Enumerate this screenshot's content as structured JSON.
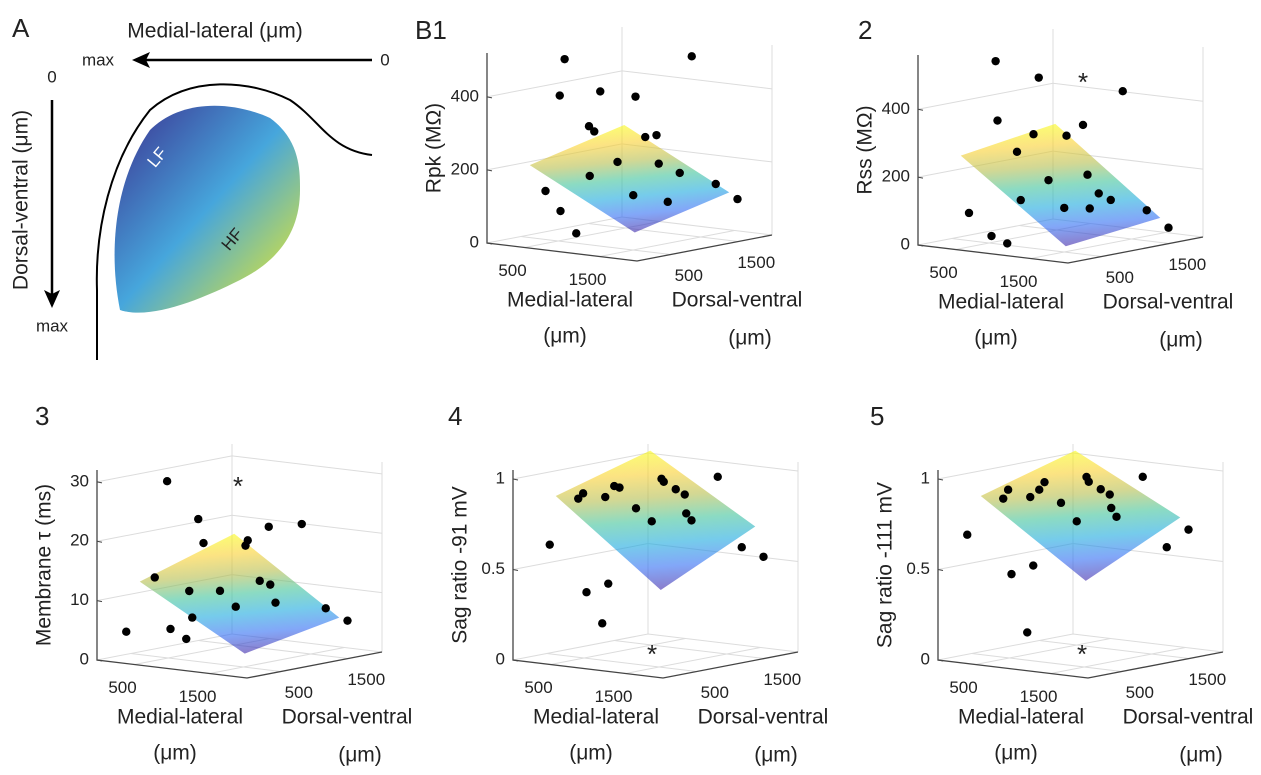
{
  "diagram": {
    "label": "A",
    "ml_axis": "Medial-lateral (μm)",
    "ml_max": "max",
    "ml_zero": "0",
    "dv_axis": "Dorsal-ventral (μm)",
    "dv_zero": "0",
    "dv_max": "max",
    "low": "LF",
    "high": "HF"
  },
  "chart_data": [
    {
      "type": "scatter3d",
      "title": "B1",
      "zlabel": "Rpk (MΩ)",
      "xlabel": [
        "Medial-lateral",
        "(μm)"
      ],
      "ylabel": [
        "Dorsal-ventral",
        "(μm)"
      ],
      "xlim": [
        0,
        2000
      ],
      "ylim": [
        0,
        2000
      ],
      "zlim": [
        0,
        520
      ],
      "xticks": [
        500,
        1500
      ],
      "yticks": [
        500,
        1500
      ],
      "zticks": [
        0,
        200,
        400
      ],
      "grid": true,
      "surface": {
        "x": [
          300,
          1700
        ],
        "y": [
          300,
          1700
        ],
        "z": [
          210,
          60,
          120,
          270
        ]
      },
      "series": [
        {
          "color": "#000000",
          "x": [
            600,
            700,
            900,
            800,
            1000,
            1100,
            700,
            1200,
            1300,
            1500,
            900,
            1000,
            1400,
            1600,
            1700,
            1200,
            800,
            1100,
            1900,
            1300
          ],
          "y": [
            200,
            300,
            150,
            700,
            400,
            300,
            900,
            600,
            900,
            500,
            1200,
            1400,
            1300,
            900,
            1500,
            1700,
            200,
            100,
            1600,
            1100
          ],
          "values": [
            150,
            410,
            520,
            300,
            330,
            200,
            400,
            230,
            290,
            150,
            380,
            270,
            180,
            120,
            150,
            480,
            100,
            50,
            110,
            210
          ]
        }
      ]
    },
    {
      "type": "scatter3d",
      "title": "2",
      "zlabel": "Rss (MΩ)",
      "xlabel": [
        "Medial-lateral",
        "(μm)"
      ],
      "ylabel": [
        "Dorsal-ventral",
        "(μm)"
      ],
      "xlim": [
        0,
        2000
      ],
      "ylim": [
        0,
        2000
      ],
      "zlim": [
        0,
        560
      ],
      "xticks": [
        500,
        1500
      ],
      "yticks": [
        500,
        1500
      ],
      "zticks": [
        0,
        200,
        400
      ],
      "grid": true,
      "annotation": "*",
      "surface": {
        "x": [
          300,
          1700
        ],
        "y": [
          300,
          1700
        ],
        "z": [
          260,
          30,
          60,
          300
        ]
      },
      "series": [
        {
          "color": "#000000",
          "x": [
            500,
            700,
            900,
            1000,
            1100,
            800,
            1200,
            1300,
            1500,
            900,
            1000,
            1400,
            1600,
            1700,
            1200,
            800,
            1100,
            1900,
            1300,
            600
          ],
          "y": [
            200,
            400,
            150,
            600,
            300,
            900,
            600,
            1000,
            500,
            1200,
            1400,
            1300,
            900,
            1500,
            1700,
            200,
            100,
            1600,
            1100,
            800
          ],
          "values": [
            100,
            370,
            560,
            330,
            150,
            480,
            200,
            350,
            130,
            300,
            180,
            120,
            160,
            90,
            420,
            40,
            30,
            40,
            100,
            260
          ]
        }
      ]
    },
    {
      "type": "scatter3d",
      "title": "3",
      "zlabel": "Membrane τ (ms)",
      "xlabel": [
        "Medial-lateral",
        "(μm)"
      ],
      "ylabel": [
        "Dorsal-ventral",
        "(μm)"
      ],
      "xlim": [
        0,
        2000
      ],
      "ylim": [
        0,
        2000
      ],
      "zlim": [
        0,
        32
      ],
      "xticks": [
        500,
        1500
      ],
      "yticks": [
        500,
        1500
      ],
      "zticks": [
        0,
        10,
        20,
        30
      ],
      "grid": true,
      "annotation": "*",
      "surface": {
        "x": [
          300,
          1700
        ],
        "y": [
          300,
          1700
        ],
        "z": [
          13,
          3,
          6,
          18
        ]
      },
      "series": [
        {
          "color": "#000000",
          "x": [
            300,
            500,
            800,
            900,
            1000,
            700,
            1100,
            1200,
            1400,
            900,
            1000,
            1300,
            1500,
            1700,
            1200,
            800,
            1100,
            1900,
            1300,
            600
          ],
          "y": [
            100,
            300,
            150,
            500,
            300,
            800,
            600,
            900,
            500,
            1200,
            1300,
            1200,
            900,
            1500,
            1700,
            200,
            100,
            1600,
            1100,
            700
          ],
          "values": [
            5,
            14,
            31,
            24,
            8,
            19,
            12,
            20,
            10,
            18,
            12,
            9,
            13,
            8,
            21,
            6,
            5,
            6,
            22,
            11
          ]
        }
      ]
    },
    {
      "type": "scatter3d",
      "title": "4",
      "zlabel": "Sag ratio -91 mV",
      "xlabel": [
        "Medial-lateral",
        "(μm)"
      ],
      "ylabel": [
        "Dorsal-ventral",
        "(μm)"
      ],
      "xlim": [
        0,
        2000
      ],
      "ylim": [
        0,
        2000
      ],
      "zlim": [
        0,
        1.05
      ],
      "xticks": [
        500,
        1500
      ],
      "yticks": [
        500,
        1500
      ],
      "zticks": [
        0,
        0.5,
        1
      ],
      "grid": true,
      "annotation": "*",
      "surface": {
        "x": [
          300,
          1700
        ],
        "y": [
          300,
          1700
        ],
        "z": [
          0.9,
          0.45,
          0.7,
          1.05
        ]
      },
      "series": [
        {
          "color": "#000000",
          "x": [
            400,
            600,
            800,
            900,
            1000,
            700,
            1100,
            1200,
            1400,
            900,
            1000,
            1300,
            1500,
            1700,
            1200,
            800,
            1100,
            1900,
            1300,
            600
          ],
          "y": [
            100,
            300,
            150,
            500,
            300,
            800,
            600,
            900,
            500,
            1200,
            1300,
            1200,
            900,
            1500,
            1700,
            200,
            100,
            1600,
            1100,
            700
          ],
          "values": [
            0.65,
            0.9,
            0.95,
            0.97,
            0.45,
            0.93,
            0.85,
            0.98,
            0.8,
            0.96,
            0.9,
            0.75,
            0.82,
            0.6,
            0.95,
            0.4,
            0.25,
            0.55,
            0.9,
            0.88
          ]
        }
      ]
    },
    {
      "type": "scatter3d",
      "title": "5",
      "zlabel": "Sag ratio -111 mV",
      "xlabel": [
        "Medial-lateral",
        "(μm)"
      ],
      "ylabel": [
        "Dorsal-ventral",
        "(μm)"
      ],
      "xlim": [
        0,
        2000
      ],
      "ylim": [
        0,
        2000
      ],
      "zlim": [
        0,
        1.05
      ],
      "xticks": [
        500,
        1500
      ],
      "yticks": [
        500,
        1500
      ],
      "zticks": [
        0,
        0.5,
        1
      ],
      "grid": true,
      "annotation": "*",
      "surface": {
        "x": [
          300,
          1700
        ],
        "y": [
          300,
          1700
        ],
        "z": [
          0.9,
          0.5,
          0.75,
          1.05
        ]
      },
      "series": [
        {
          "color": "#000000",
          "x": [
            300,
            600,
            800,
            900,
            1000,
            700,
            1100,
            1200,
            1400,
            900,
            1000,
            1300,
            1500,
            1700,
            1200,
            800,
            1100,
            1900,
            1300,
            600
          ],
          "y": [
            100,
            300,
            150,
            500,
            300,
            800,
            600,
            900,
            500,
            1200,
            1300,
            1200,
            900,
            1500,
            1700,
            200,
            100,
            1600,
            1100,
            700
          ],
          "values": [
            0.7,
            0.9,
            0.97,
            0.95,
            0.55,
            0.96,
            0.88,
            0.98,
            0.8,
            0.97,
            0.9,
            0.77,
            0.85,
            0.6,
            0.95,
            0.5,
            0.2,
            0.7,
            0.9,
            0.88
          ]
        }
      ]
    }
  ]
}
